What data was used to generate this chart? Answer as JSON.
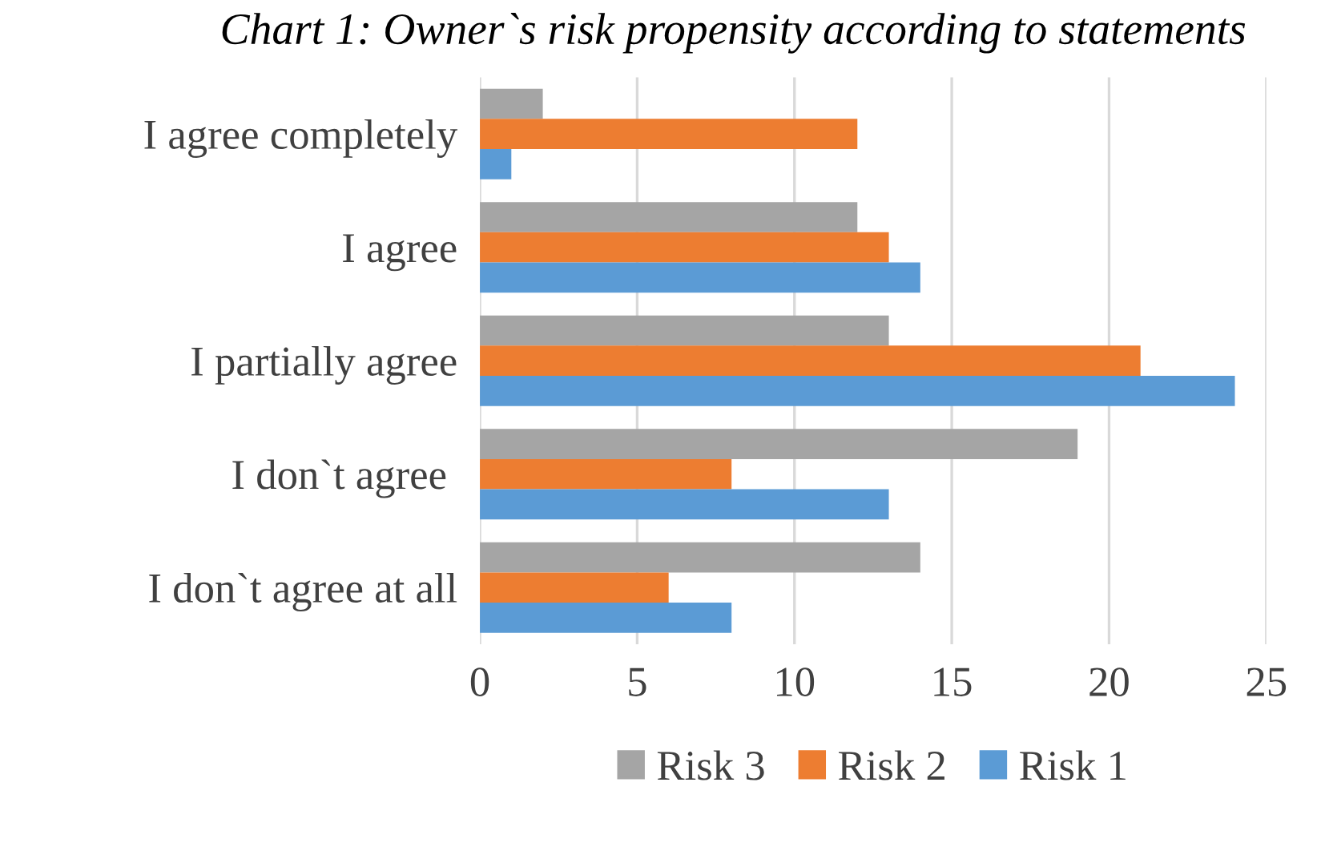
{
  "chart_data": {
    "type": "bar",
    "orientation": "horizontal",
    "title": "Chart 1: Owner`s risk propensity according to statements",
    "categories": [
      "I agree completely",
      "I agree",
      "I partially agree",
      "I don`t agree ",
      "I don`t agree at all"
    ],
    "series": [
      {
        "name": "Risk 3",
        "color": "#a5a5a5",
        "values": [
          2,
          12,
          13,
          19,
          14
        ]
      },
      {
        "name": "Risk 2",
        "color": "#ed7d31",
        "values": [
          12,
          13,
          21,
          8,
          6
        ]
      },
      {
        "name": "Risk 1",
        "color": "#5b9bd5",
        "values": [
          1,
          14,
          24,
          13,
          8
        ]
      }
    ],
    "xlim": [
      0,
      25
    ],
    "xticks": [
      0,
      5,
      10,
      15,
      20,
      25
    ],
    "grid": "x",
    "legend": "bottom"
  }
}
